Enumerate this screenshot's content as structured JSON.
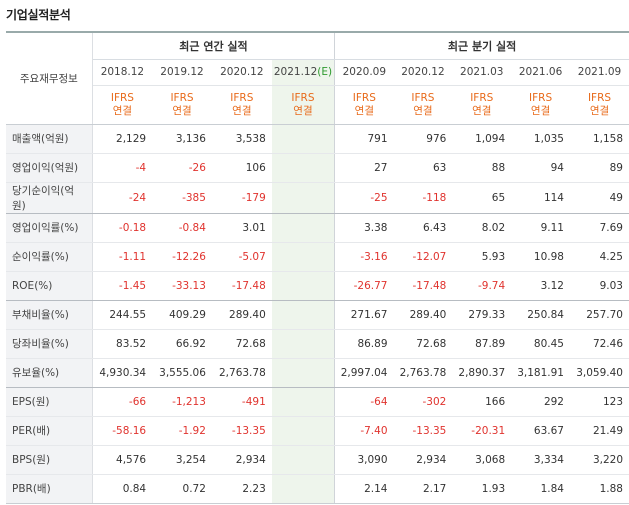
{
  "title": "기업실적분석",
  "row_header": "주요재무정보",
  "group_annual": "최근 연간 실적",
  "group_quarter": "최근 분기 실적",
  "periods": [
    {
      "label": "2018.12",
      "est": false,
      "std": "IFRS",
      "type": "연결"
    },
    {
      "label": "2019.12",
      "est": false,
      "std": "IFRS",
      "type": "연결"
    },
    {
      "label": "2020.12",
      "est": false,
      "std": "IFRS",
      "type": "연결"
    },
    {
      "label": "2021.12(E)",
      "est": true,
      "std": "IFRS",
      "type": "연결"
    },
    {
      "label": "2020.09",
      "est": false,
      "std": "IFRS",
      "type": "연결"
    },
    {
      "label": "2020.12",
      "est": false,
      "std": "IFRS",
      "type": "연결"
    },
    {
      "label": "2021.03",
      "est": false,
      "std": "IFRS",
      "type": "연결"
    },
    {
      "label": "2021.06",
      "est": false,
      "std": "IFRS",
      "type": "연결"
    },
    {
      "label": "2021.09",
      "est": false,
      "std": "IFRS",
      "type": "연결"
    }
  ],
  "rows": [
    {
      "label": "매출액(억원)",
      "values": [
        "2,129",
        "3,136",
        "3,538",
        "",
        "791",
        "976",
        "1,094",
        "1,035",
        "1,158"
      ]
    },
    {
      "label": "영업이익(억원)",
      "values": [
        "-4",
        "-26",
        "106",
        "",
        "27",
        "63",
        "88",
        "94",
        "89"
      ]
    },
    {
      "label": "당기순이익(억원)",
      "values": [
        "-24",
        "-385",
        "-179",
        "",
        "-25",
        "-118",
        "65",
        "114",
        "49"
      ]
    },
    {
      "label": "영업이익률(%)",
      "values": [
        "-0.18",
        "-0.84",
        "3.01",
        "",
        "3.38",
        "6.43",
        "8.02",
        "9.11",
        "7.69"
      ]
    },
    {
      "label": "순이익률(%)",
      "values": [
        "-1.11",
        "-12.26",
        "-5.07",
        "",
        "-3.16",
        "-12.07",
        "5.93",
        "10.98",
        "4.25"
      ]
    },
    {
      "label": "ROE(%)",
      "values": [
        "-1.45",
        "-33.13",
        "-17.48",
        "",
        "-26.77",
        "-17.48",
        "-9.74",
        "3.12",
        "9.03"
      ]
    },
    {
      "label": "부채비율(%)",
      "values": [
        "244.55",
        "409.29",
        "289.40",
        "",
        "271.67",
        "289.40",
        "279.33",
        "250.84",
        "257.70"
      ]
    },
    {
      "label": "당좌비율(%)",
      "values": [
        "83.52",
        "66.92",
        "72.68",
        "",
        "86.89",
        "72.68",
        "87.89",
        "80.45",
        "72.46"
      ]
    },
    {
      "label": "유보율(%)",
      "values": [
        "4,930.34",
        "3,555.06",
        "2,763.78",
        "",
        "2,997.04",
        "2,763.78",
        "2,890.37",
        "3,181.91",
        "3,059.40"
      ]
    },
    {
      "label": "EPS(원)",
      "values": [
        "-66",
        "-1,213",
        "-491",
        "",
        "-64",
        "-302",
        "166",
        "292",
        "123"
      ]
    },
    {
      "label": "PER(배)",
      "values": [
        "-58.16",
        "-1.92",
        "-13.35",
        "",
        "-7.40",
        "-13.35",
        "-20.31",
        "63.67",
        "21.49"
      ]
    },
    {
      "label": "BPS(원)",
      "values": [
        "4,576",
        "3,254",
        "2,934",
        "",
        "3,090",
        "2,934",
        "3,068",
        "3,334",
        "3,220"
      ]
    },
    {
      "label": "PBR(배)",
      "values": [
        "0.84",
        "0.72",
        "2.23",
        "",
        "2.14",
        "2.17",
        "1.93",
        "1.84",
        "1.88"
      ]
    }
  ]
}
